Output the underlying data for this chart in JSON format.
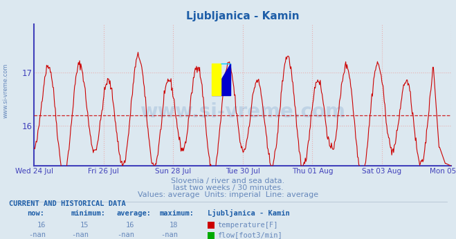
{
  "title": "Ljubljanica - Kamin",
  "title_color": "#1e5ea8",
  "bg_color": "#dce8f0",
  "plot_bg_color": "#dce8f0",
  "line_color": "#cc0000",
  "avg_line_color": "#cc0000",
  "avg_line_value": 16.2,
  "grid_color": "#e8b0b0",
  "axis_color": "#4040bb",
  "xlabel_dates": [
    "Wed 24 Jul",
    "Fri 26 Jul",
    "Sun 28 Jul",
    "Tue 30 Jul",
    "Thu 01 Aug",
    "Sat 03 Aug",
    "Mon 05 Aug"
  ],
  "subtitle1": "Slovenia / river and sea data.",
  "subtitle2": "last two weeks / 30 minutes.",
  "subtitle3": "Values: average  Units: imperial  Line: average",
  "subtitle_color": "#6688bb",
  "table_header": "CURRENT AND HISTORICAL DATA",
  "table_color": "#1e5ea8",
  "table_val_color": "#6688bb",
  "col_headers": [
    "now:",
    "minimum:",
    "average:",
    "maximum:",
    "Ljubljanica - Kamin"
  ],
  "row1": [
    "16",
    "15",
    "16",
    "18"
  ],
  "row1_label": "temperature[F]",
  "row1_color": "#cc0000",
  "row2": [
    "-nan",
    "-nan",
    "-nan",
    "-nan"
  ],
  "row2_label": "flow[foot3/min]",
  "row2_color": "#00aa00",
  "ylim_min": 15.25,
  "ylim_max": 17.9,
  "watermark_text": "www.si-vreme.com",
  "watermark_color": "#1e5ea8",
  "watermark_alpha": 0.15,
  "sidebar_text": "www.si-vreme.com",
  "sidebar_color": "#6688bb",
  "logo_yellow": "#ffff00",
  "logo_cyan": "#00ccff",
  "logo_blue": "#0000cc"
}
